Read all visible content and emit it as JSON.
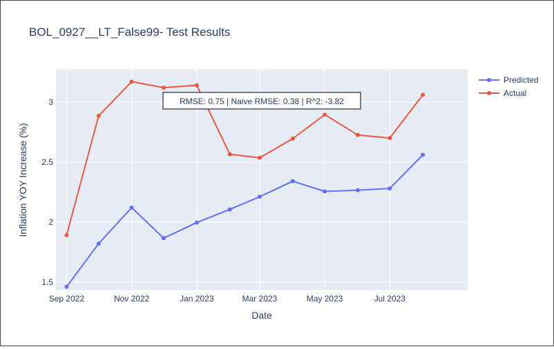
{
  "chart_data": {
    "type": "line",
    "title": "BOL_0927__LT_False99- Test Results",
    "xlabel": "Date",
    "ylabel": "Inflation YOY Increase (%)",
    "x": [
      "2022-09-01",
      "2022-10-01",
      "2022-11-01",
      "2022-12-01",
      "2023-01-01",
      "2023-02-01",
      "2023-03-01",
      "2023-04-01",
      "2023-05-01",
      "2023-06-01",
      "2023-07-01",
      "2023-08-01"
    ],
    "x_ticks": [
      "Sep 2022",
      "Nov 2022",
      "Jan 2023",
      "Mar 2023",
      "May 2023",
      "Jul 2023"
    ],
    "y_ticks": [
      "1.5",
      "2",
      "2.5",
      "3"
    ],
    "ylim": [
      1.43,
      3.27
    ],
    "grid": true,
    "legend_position": "top-right",
    "annotation": "RMSE: 0.75 | Naive RMSE: 0.38 | R^2: -3.82",
    "series": [
      {
        "name": "Predicted",
        "color": "#636efa",
        "values": [
          1.46,
          1.82,
          2.12,
          1.865,
          1.995,
          2.105,
          2.21,
          2.34,
          2.255,
          2.265,
          2.28,
          2.56
        ]
      },
      {
        "name": "Actual",
        "color": "#ef553b",
        "values": [
          1.89,
          2.885,
          3.17,
          3.12,
          3.14,
          2.565,
          2.535,
          2.695,
          2.895,
          2.725,
          2.7,
          3.06
        ]
      }
    ]
  }
}
